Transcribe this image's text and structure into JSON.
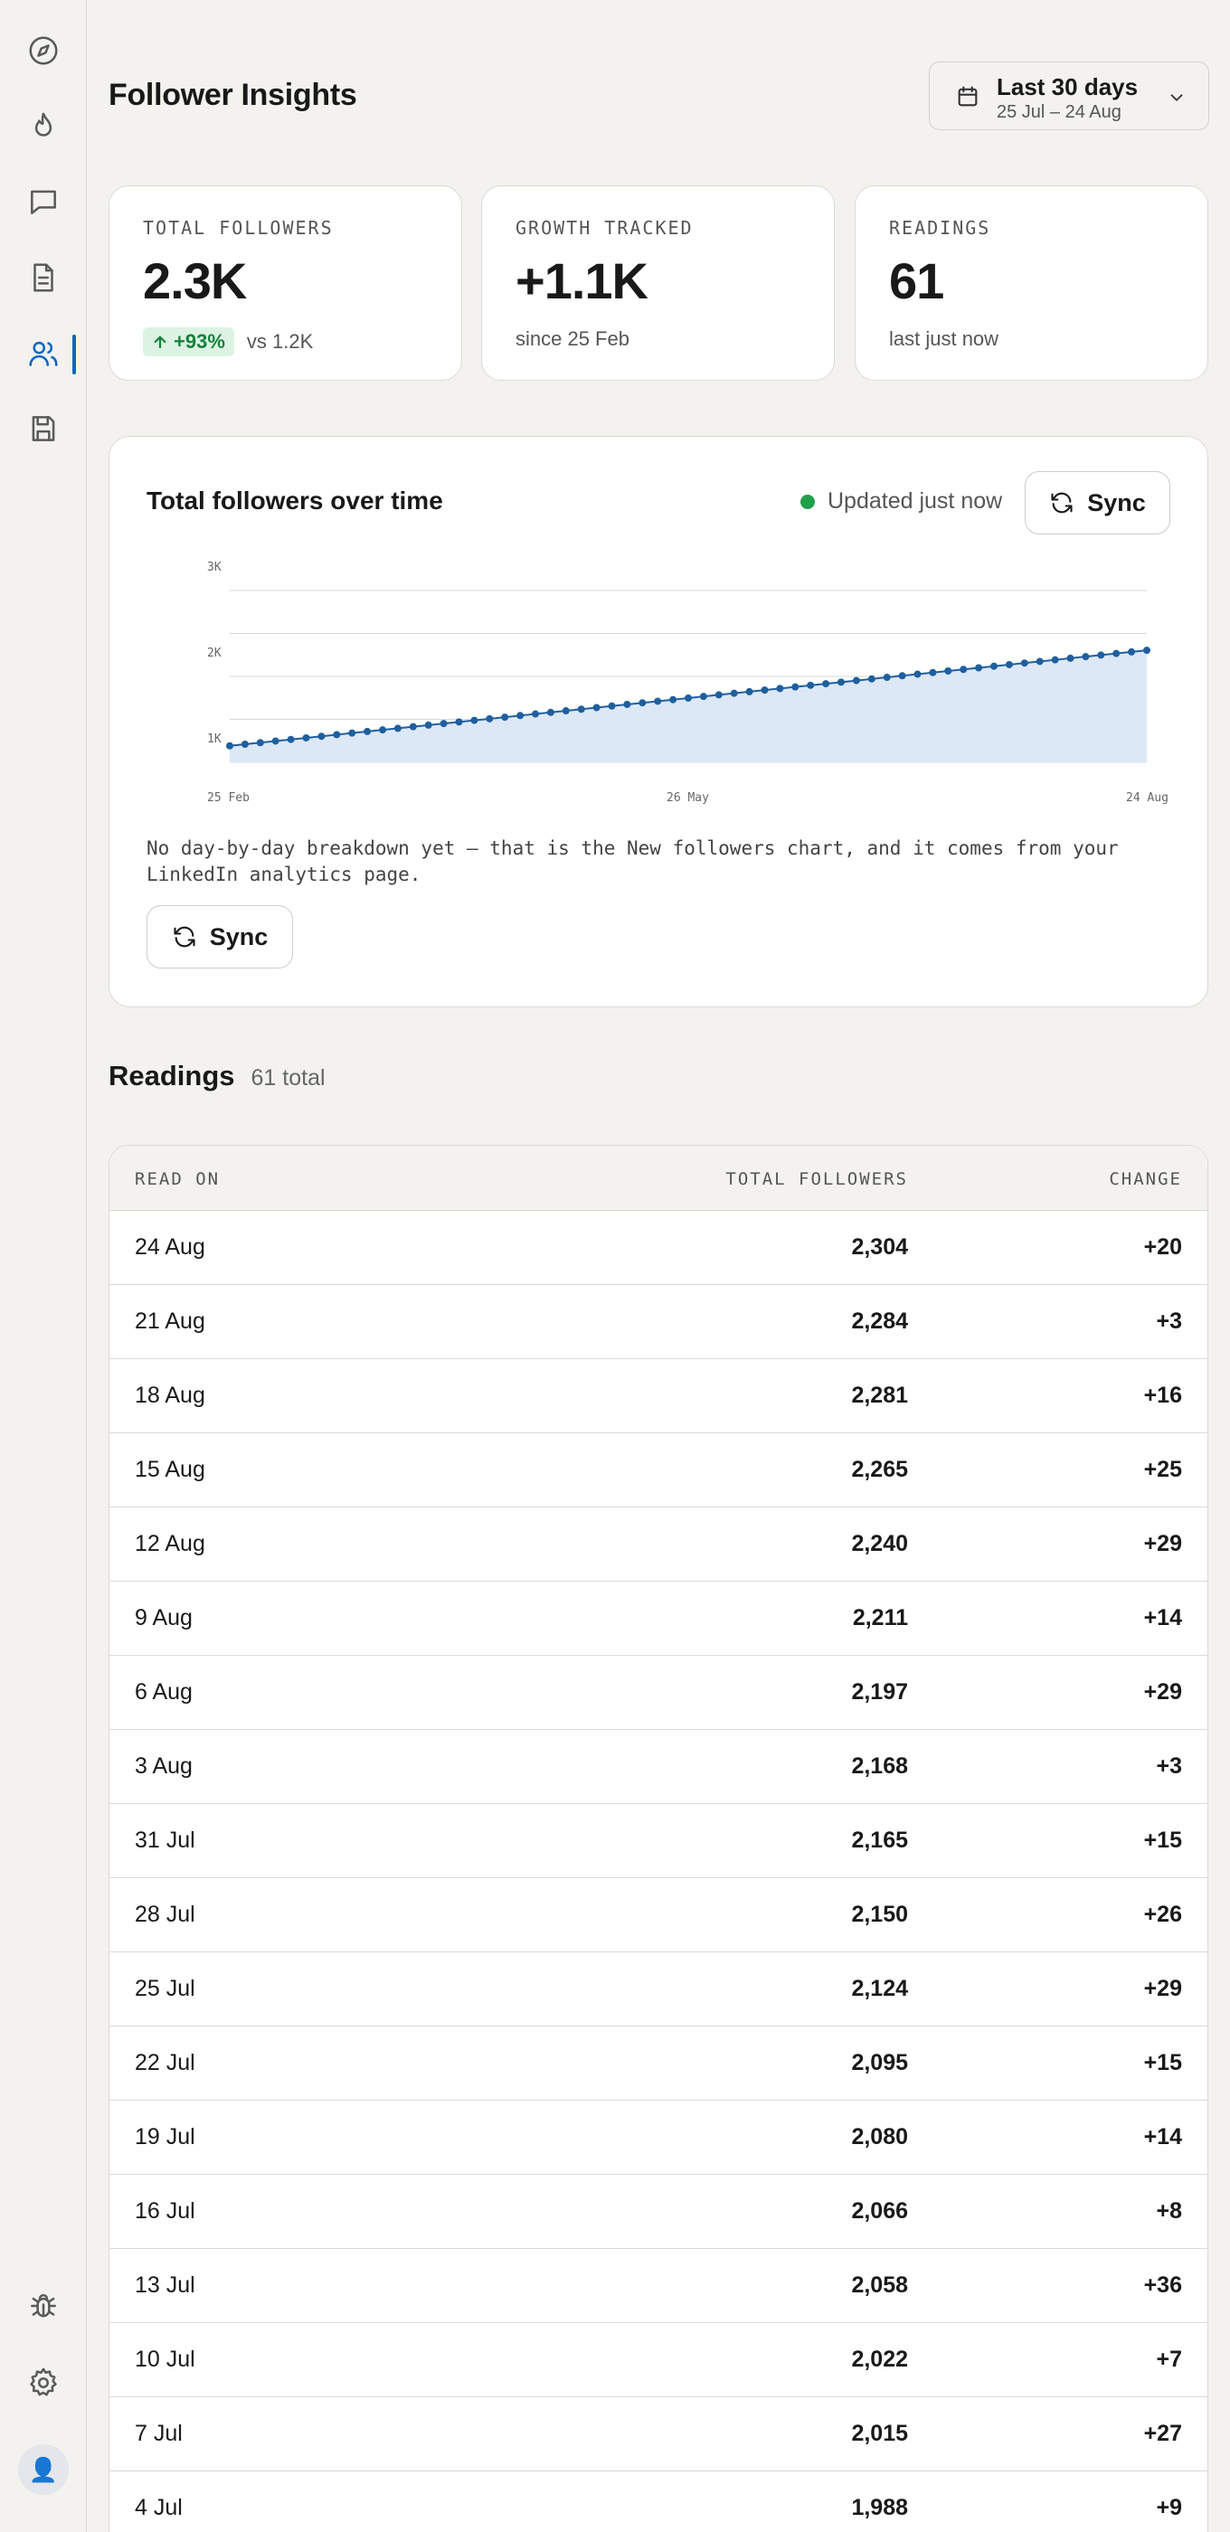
{
  "sidebar": {
    "items": [
      {
        "name": "compass-icon"
      },
      {
        "name": "flame-icon"
      },
      {
        "name": "chat-icon"
      },
      {
        "name": "document-icon"
      },
      {
        "name": "users-icon",
        "active": true
      },
      {
        "name": "save-icon"
      }
    ],
    "bottom": [
      {
        "name": "bug-icon"
      },
      {
        "name": "gear-icon"
      }
    ],
    "avatar": "👤"
  },
  "header": {
    "title": "Follower Insights",
    "date_range": {
      "label": "Last 30 days",
      "sub": "25 Jul – 24 Aug"
    }
  },
  "stats": [
    {
      "label": "TOTAL FOLLOWERS",
      "value": "2.3K",
      "badge": "+93%",
      "sub": "vs 1.2K"
    },
    {
      "label": "GROWTH TRACKED",
      "value": "+1.1K",
      "sub": "since 25 Feb"
    },
    {
      "label": "READINGS",
      "value": "61",
      "sub": "last just now"
    }
  ],
  "chart_card": {
    "title": "Total followers over time",
    "status": "Updated just now",
    "sync_label": "Sync",
    "note": "No day-by-day breakdown yet — that is the New followers chart, and it comes from your LinkedIn analytics page.",
    "sync_label_2": "Sync"
  },
  "chart_data": {
    "type": "area",
    "y_ticks": [
      "3K",
      "2K",
      "1K"
    ],
    "x_ticks": [
      "25 Feb",
      "26 May",
      "24 Aug"
    ],
    "ylim": [
      1000,
      3000
    ],
    "point_count": 61,
    "start_value": 1192,
    "end_value": 2304,
    "grid": true,
    "colors": {
      "line": "#1f5f9e",
      "fill": "#dde8f6",
      "grid": "#d8d8d8"
    }
  },
  "readings": {
    "title": "Readings",
    "count": "61 total",
    "columns": [
      "READ ON",
      "TOTAL FOLLOWERS",
      "CHANGE"
    ],
    "rows": [
      {
        "date": "24 Aug",
        "total": "2,304",
        "change": "+20"
      },
      {
        "date": "21 Aug",
        "total": "2,284",
        "change": "+3"
      },
      {
        "date": "18 Aug",
        "total": "2,281",
        "change": "+16"
      },
      {
        "date": "15 Aug",
        "total": "2,265",
        "change": "+25"
      },
      {
        "date": "12 Aug",
        "total": "2,240",
        "change": "+29"
      },
      {
        "date": "9 Aug",
        "total": "2,211",
        "change": "+14"
      },
      {
        "date": "6 Aug",
        "total": "2,197",
        "change": "+29"
      },
      {
        "date": "3 Aug",
        "total": "2,168",
        "change": "+3"
      },
      {
        "date": "31 Jul",
        "total": "2,165",
        "change": "+15"
      },
      {
        "date": "28 Jul",
        "total": "2,150",
        "change": "+26"
      },
      {
        "date": "25 Jul",
        "total": "2,124",
        "change": "+29"
      },
      {
        "date": "22 Jul",
        "total": "2,095",
        "change": "+15"
      },
      {
        "date": "19 Jul",
        "total": "2,080",
        "change": "+14"
      },
      {
        "date": "16 Jul",
        "total": "2,066",
        "change": "+8"
      },
      {
        "date": "13 Jul",
        "total": "2,058",
        "change": "+36"
      },
      {
        "date": "10 Jul",
        "total": "2,022",
        "change": "+7"
      },
      {
        "date": "7 Jul",
        "total": "2,015",
        "change": "+27"
      },
      {
        "date": "4 Jul",
        "total": "1,988",
        "change": "+9"
      }
    ]
  }
}
